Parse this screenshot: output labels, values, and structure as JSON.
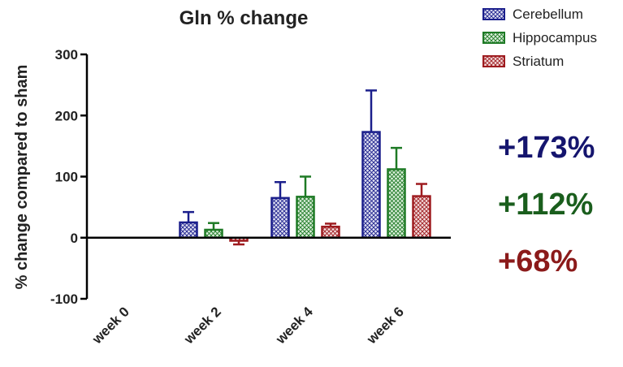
{
  "chart_data": {
    "type": "bar",
    "title": "Gln % change",
    "xlabel": "",
    "ylabel": "% change compared to sham",
    "ylim": [
      -100,
      300
    ],
    "yticks": [
      -100,
      0,
      100,
      200,
      300
    ],
    "categories": [
      "week 0",
      "week 2",
      "week 4",
      "week 6"
    ],
    "grid": false,
    "legend_position": "top-right",
    "series": [
      {
        "name": "Cerebellum",
        "color": "#1b1f8c",
        "values": [
          0,
          25,
          65,
          173
        ],
        "error": [
          0,
          17,
          26,
          68
        ]
      },
      {
        "name": "Hippocampus",
        "color": "#1e7a25",
        "values": [
          0,
          13,
          67,
          112
        ],
        "error": [
          0,
          11,
          33,
          35
        ]
      },
      {
        "name": "Striatum",
        "color": "#9e1b1f",
        "values": [
          0,
          -5,
          18,
          68
        ],
        "error": [
          0,
          6,
          5,
          20
        ]
      }
    ],
    "annotations": [
      {
        "text": "+173%",
        "color": "#15156e"
      },
      {
        "text": "+112%",
        "color": "#1a5e1d"
      },
      {
        "text": "+68%",
        "color": "#8b1a1a"
      }
    ]
  }
}
